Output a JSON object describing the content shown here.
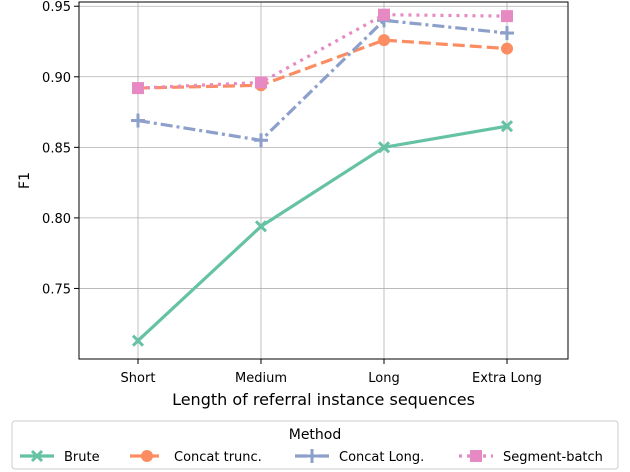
{
  "chart_data": {
    "type": "line",
    "title": "",
    "xlabel": "Length of referral instance sequences",
    "ylabel": "F1",
    "categories": [
      "Short",
      "Medium",
      "Long",
      "Extra Long"
    ],
    "ylim": [
      0.7,
      0.953
    ],
    "yticks": [
      0.75,
      0.8,
      0.85,
      0.9,
      0.95
    ],
    "ytick_labels": [
      "0.75",
      "0.80",
      "0.85",
      "0.90",
      "0.95"
    ],
    "grid": true,
    "legend": {
      "title": "Method",
      "placement": "bottom-center",
      "columns": 4
    },
    "series": [
      {
        "name": "Brute",
        "values": [
          0.713,
          0.794,
          0.85,
          0.865
        ],
        "color": "#66c2a5",
        "dash": "solid",
        "marker": "x"
      },
      {
        "name": "Concat trunc.",
        "values": [
          0.892,
          0.894,
          0.926,
          0.92
        ],
        "color": "#fc8d62",
        "dash": "dashed",
        "marker": "circle"
      },
      {
        "name": "Concat Long.",
        "values": [
          0.869,
          0.855,
          0.94,
          0.931
        ],
        "color": "#8da0cb",
        "dash": "dashdot",
        "marker": "plus"
      },
      {
        "name": "Segment-batch",
        "values": [
          0.892,
          0.896,
          0.944,
          0.943
        ],
        "color": "#e78ac3",
        "dash": "dotted",
        "marker": "square"
      }
    ]
  }
}
